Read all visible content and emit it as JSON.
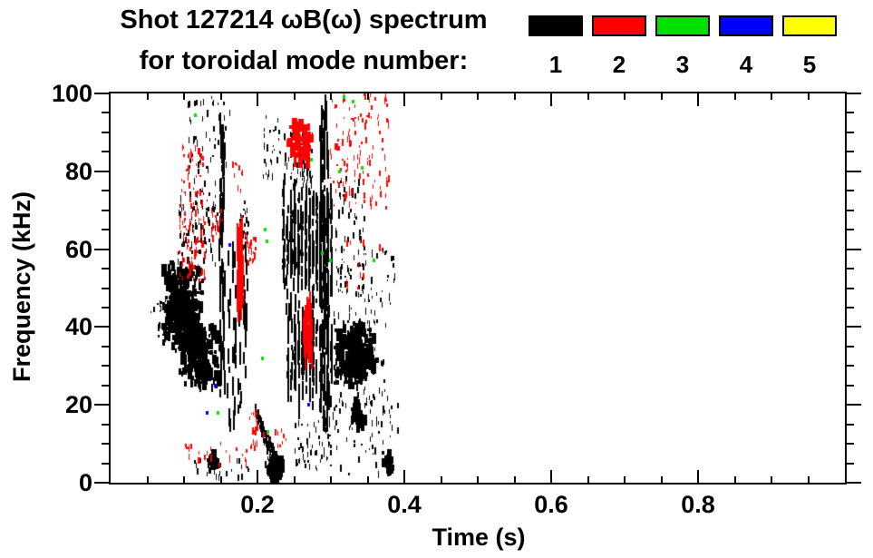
{
  "header": {
    "title_line1": "Shot 127214 ωB(ω) spectrum",
    "title_line2": "for toroidal mode number:"
  },
  "legend": {
    "modes": [
      {
        "label": "1",
        "color": "#000000"
      },
      {
        "label": "2",
        "color": "#FF0000"
      },
      {
        "label": "3",
        "color": "#00E100"
      },
      {
        "label": "4",
        "color": "#0000FF"
      },
      {
        "label": "5",
        "color": "#FFFF00"
      }
    ]
  },
  "chart_data": {
    "type": "scatter",
    "title": "Shot 127214 ωB(ω) spectrum for toroidal mode number: 1 2 3 4 5",
    "xlabel": "Time (s)",
    "ylabel": "Frequency (kHz)",
    "xlim": [
      0.0,
      1.0
    ],
    "ylim": [
      0,
      100
    ],
    "grid": false,
    "legend_position": "top-right",
    "xticks": {
      "major": [
        0.2,
        0.4,
        0.6,
        0.8
      ],
      "major_labels": [
        "0.2",
        "0.4",
        "0.6",
        "0.8"
      ],
      "minor_step": 0.05
    },
    "yticks": {
      "major": [
        0,
        20,
        40,
        60,
        80,
        100
      ],
      "major_labels": [
        "0",
        "20",
        "40",
        "60",
        "80",
        "100"
      ],
      "minor_step": 5
    },
    "series": [
      {
        "name": "n=1",
        "mode": 1,
        "color": "#000000"
      },
      {
        "name": "n=2",
        "mode": 2,
        "color": "#FF0000"
      },
      {
        "name": "n=3",
        "mode": 3,
        "color": "#00E100"
      },
      {
        "name": "n=4",
        "mode": 4,
        "color": "#0000FF"
      },
      {
        "name": "n=5",
        "mode": 5,
        "color": "#FFFF00"
      }
    ],
    "clusters": [
      {
        "mode": 1,
        "style": "dash",
        "t": [
          0.054,
          0.076
        ],
        "f": [
          37,
          47
        ],
        "n": 16
      },
      {
        "mode": 1,
        "style": "blob",
        "t": [
          0.066,
          0.127
        ],
        "f": [
          33,
          58
        ],
        "n": 400
      },
      {
        "mode": 1,
        "style": "blob",
        "t": [
          0.088,
          0.15
        ],
        "f": [
          22,
          42
        ],
        "n": 230
      },
      {
        "mode": 1,
        "style": "dash",
        "t": [
          0.09,
          0.146
        ],
        "f": [
          56,
          78
        ],
        "n": 85
      },
      {
        "mode": 1,
        "style": "dash",
        "t": [
          0.104,
          0.162
        ],
        "f": [
          79,
          99
        ],
        "n": 50
      },
      {
        "mode": 1,
        "style": "streak",
        "t": [
          0.147,
          0.154
        ],
        "f": [
          20,
          96
        ],
        "n": 55
      },
      {
        "mode": 1,
        "style": "streak3",
        "t": [
          0.156,
          0.186
        ],
        "f": [
          14,
          60
        ],
        "n": 70
      },
      {
        "mode": 1,
        "style": "dash",
        "t": [
          0.175,
          0.186
        ],
        "f": [
          60,
          73
        ],
        "n": 25
      },
      {
        "mode": 1,
        "style": "chirp",
        "t": [
          0.196,
          0.227
        ],
        "f": [
          19,
          2
        ],
        "n": 160
      },
      {
        "mode": 1,
        "style": "blob",
        "t": [
          0.21,
          0.233
        ],
        "f": [
          0,
          7
        ],
        "n": 130
      },
      {
        "mode": 1,
        "style": "dash",
        "t": [
          0.108,
          0.19
        ],
        "f": [
          1,
          6
        ],
        "n": 26
      },
      {
        "mode": 1,
        "style": "blob",
        "t": [
          0.128,
          0.147
        ],
        "f": [
          3,
          8
        ],
        "n": 20
      },
      {
        "mode": 1,
        "style": "blobv",
        "t": [
          0.232,
          0.302
        ],
        "f": [
          44,
          78
        ],
        "n": 340
      },
      {
        "mode": 1,
        "style": "blobv",
        "t": [
          0.238,
          0.302
        ],
        "f": [
          18,
          46
        ],
        "n": 200
      },
      {
        "mode": 1,
        "style": "dash",
        "t": [
          0.235,
          0.275
        ],
        "f": [
          76,
          90
        ],
        "n": 70
      },
      {
        "mode": 1,
        "style": "streak",
        "t": [
          0.284,
          0.296
        ],
        "f": [
          14,
          97
        ],
        "n": 80
      },
      {
        "mode": 1,
        "style": "dash",
        "t": [
          0.205,
          0.232
        ],
        "f": [
          78,
          95
        ],
        "n": 30
      },
      {
        "mode": 1,
        "style": "blob",
        "t": [
          0.302,
          0.362
        ],
        "f": [
          24,
          42
        ],
        "n": 260
      },
      {
        "mode": 1,
        "style": "dash",
        "t": [
          0.298,
          0.375
        ],
        "f": [
          15,
          48
        ],
        "n": 90
      },
      {
        "mode": 1,
        "style": "dash",
        "t": [
          0.302,
          0.345
        ],
        "f": [
          48,
          78
        ],
        "n": 80
      },
      {
        "mode": 1,
        "style": "dash",
        "t": [
          0.345,
          0.388
        ],
        "f": [
          45,
          60
        ],
        "n": 28
      },
      {
        "mode": 1,
        "style": "dash",
        "t": [
          0.25,
          0.3
        ],
        "f": [
          3,
          18
        ],
        "n": 55
      },
      {
        "mode": 1,
        "style": "dash",
        "t": [
          0.3,
          0.392
        ],
        "f": [
          2,
          22
        ],
        "n": 60
      },
      {
        "mode": 1,
        "style": "blob",
        "t": [
          0.325,
          0.345
        ],
        "f": [
          13,
          22
        ],
        "n": 40
      },
      {
        "mode": 1,
        "style": "blob",
        "t": [
          0.368,
          0.384
        ],
        "f": [
          2,
          9
        ],
        "n": 26
      },
      {
        "mode": 2,
        "style": "dash",
        "t": [
          0.093,
          0.128
        ],
        "f": [
          52,
          68
        ],
        "n": 70
      },
      {
        "mode": 2,
        "style": "dash",
        "t": [
          0.095,
          0.125
        ],
        "f": [
          69,
          87
        ],
        "n": 45
      },
      {
        "mode": 2,
        "style": "dash",
        "t": [
          0.136,
          0.152
        ],
        "f": [
          62,
          70
        ],
        "n": 18
      },
      {
        "mode": 2,
        "style": "streak",
        "t": [
          0.171,
          0.179
        ],
        "f": [
          44,
          66
        ],
        "n": 60
      },
      {
        "mode": 2,
        "style": "dash",
        "t": [
          0.182,
          0.197
        ],
        "f": [
          56,
          64
        ],
        "n": 20
      },
      {
        "mode": 2,
        "style": "dash",
        "t": [
          0.165,
          0.181
        ],
        "f": [
          75,
          82
        ],
        "n": 10
      },
      {
        "mode": 2,
        "style": "blob",
        "t": [
          0.237,
          0.275
        ],
        "f": [
          81,
          94
        ],
        "n": 85
      },
      {
        "mode": 2,
        "style": "dash",
        "t": [
          0.298,
          0.378
        ],
        "f": [
          70,
          100
        ],
        "n": 125
      },
      {
        "mode": 2,
        "style": "streak",
        "t": [
          0.262,
          0.273
        ],
        "f": [
          31,
          46
        ],
        "n": 45
      },
      {
        "mode": 2,
        "style": "dash",
        "t": [
          0.189,
          0.2
        ],
        "f": [
          8,
          19
        ],
        "n": 22
      },
      {
        "mode": 2,
        "style": "dash",
        "t": [
          0.1,
          0.19
        ],
        "f": [
          4,
          10
        ],
        "n": 26
      },
      {
        "mode": 2,
        "style": "dash",
        "t": [
          0.205,
          0.24
        ],
        "f": [
          9,
          14
        ],
        "n": 12
      },
      {
        "mode": 2,
        "style": "dash",
        "t": [
          0.315,
          0.37
        ],
        "f": [
          50,
          62
        ],
        "n": 14
      }
    ],
    "isolated_points": [
      {
        "mode": 3,
        "pts": [
          [
            0.113,
            94.5
          ],
          [
            0.145,
            18
          ],
          [
            0.205,
            32
          ],
          [
            0.209,
            65
          ],
          [
            0.211,
            62
          ],
          [
            0.212,
            13
          ],
          [
            0.272,
            83
          ],
          [
            0.287,
            59
          ],
          [
            0.298,
            57
          ],
          [
            0.31,
            80
          ],
          [
            0.316,
            99
          ],
          [
            0.329,
            98
          ],
          [
            0.341,
            81
          ],
          [
            0.357,
            57
          ]
        ]
      },
      {
        "mode": 4,
        "pts": [
          [
            0.13,
            18
          ],
          [
            0.141,
            25
          ],
          [
            0.16,
            61
          ],
          [
            0.268,
            20
          ]
        ]
      },
      {
        "mode": 5,
        "pts": []
      }
    ]
  }
}
